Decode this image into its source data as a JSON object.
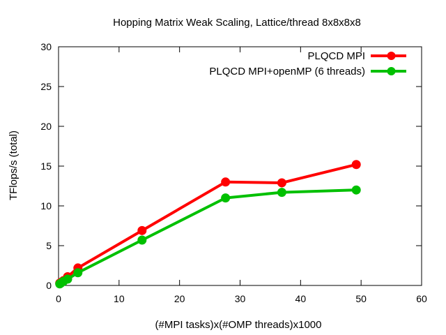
{
  "chart_data": {
    "type": "line",
    "title": "Hopping Matrix Weak Scaling, Lattice/thread 8x8x8x8",
    "xlabel": "(#MPI tasks)x(#OMP threads)x1000",
    "ylabel": "TFlops/s (total)",
    "xlim": [
      0,
      60
    ],
    "ylim": [
      0,
      30
    ],
    "xticks": [
      0,
      10,
      20,
      30,
      40,
      50,
      60
    ],
    "yticks": [
      0,
      5,
      10,
      15,
      20,
      25,
      30
    ],
    "grid": false,
    "legend_position": "top-right",
    "series": [
      {
        "name": "PLQCD MPI",
        "color": "#ff0000",
        "points": [
          [
            0.2,
            0.3
          ],
          [
            0.4,
            0.4
          ],
          [
            0.8,
            0.6
          ],
          [
            1.5,
            1.1
          ],
          [
            3.2,
            2.2
          ],
          [
            13.8,
            6.9
          ],
          [
            27.6,
            13.0
          ],
          [
            36.9,
            12.9
          ],
          [
            49.2,
            15.2
          ]
        ]
      },
      {
        "name": "PLQCD MPI+openMP (6 threads)",
        "color": "#00c000",
        "points": [
          [
            0.2,
            0.2
          ],
          [
            0.4,
            0.3
          ],
          [
            0.8,
            0.5
          ],
          [
            1.5,
            0.8
          ],
          [
            3.2,
            1.6
          ],
          [
            13.8,
            5.7
          ],
          [
            27.6,
            11.0
          ],
          [
            36.9,
            11.7
          ],
          [
            49.2,
            12.0
          ]
        ]
      }
    ]
  }
}
